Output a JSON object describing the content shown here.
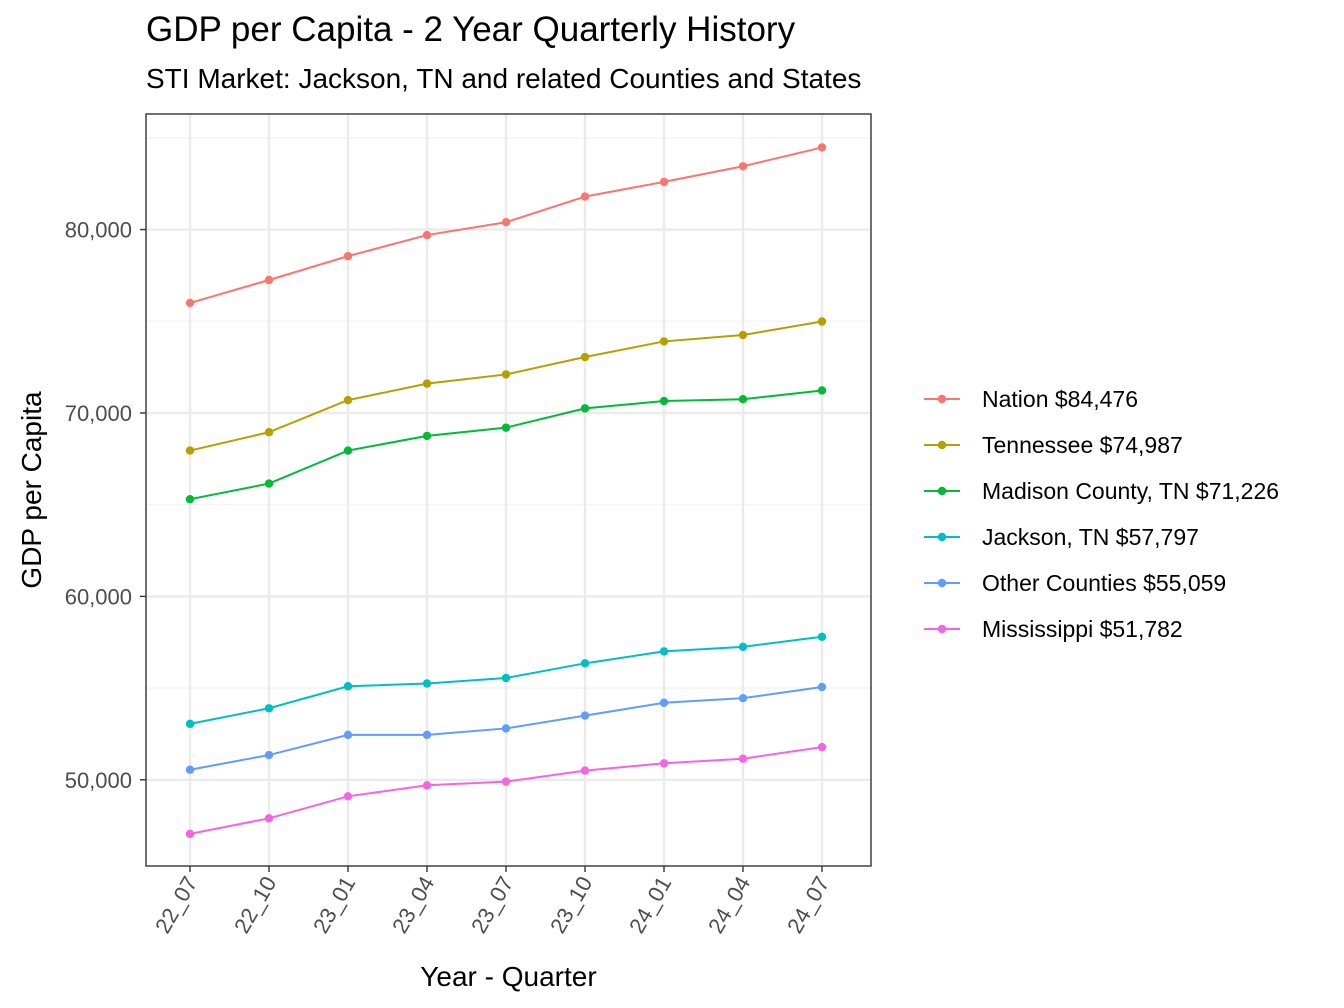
{
  "chart_data": {
    "type": "line",
    "title": "GDP per Capita - 2 Year Quarterly History",
    "subtitle": "STI Market: Jackson, TN and related Counties and States",
    "xlabel": "Year - Quarter",
    "ylabel": "GDP per Capita",
    "categories": [
      "22_07",
      "22_10",
      "23_01",
      "23_04",
      "23_07",
      "23_10",
      "24_01",
      "24_04",
      "24_07"
    ],
    "ylim": [
      45300,
      86300
    ],
    "yticks": [
      50000,
      60000,
      70000,
      80000
    ],
    "ytick_labels": [
      "50,000",
      "60,000",
      "70,000",
      "80,000"
    ],
    "grid": true,
    "legend_position": "right",
    "series": [
      {
        "name": "Nation $84,476",
        "color": "#F8766D",
        "values": [
          76000,
          77250,
          78550,
          79700,
          80400,
          81800,
          82600,
          83450,
          84476
        ]
      },
      {
        "name": "Tennessee $74,987",
        "color": "#B79F00",
        "values": [
          67950,
          68950,
          70700,
          71600,
          72100,
          73050,
          73900,
          74250,
          74987
        ]
      },
      {
        "name": "Madison County, TN $71,226",
        "color": "#00BA38",
        "values": [
          65300,
          66150,
          67950,
          68750,
          69200,
          70250,
          70650,
          70750,
          71226
        ]
      },
      {
        "name": "Jackson, TN $57,797",
        "color": "#00BFC4",
        "values": [
          53050,
          53900,
          55100,
          55250,
          55550,
          56350,
          57000,
          57250,
          57797
        ]
      },
      {
        "name": "Other Counties $55,059",
        "color": "#619CFF",
        "values": [
          50550,
          51350,
          52450,
          52450,
          52800,
          53500,
          54200,
          54450,
          55059
        ]
      },
      {
        "name": "Mississippi $51,782",
        "color": "#F564E3",
        "values": [
          47050,
          47900,
          49100,
          49700,
          49900,
          50500,
          50900,
          51150,
          51782
        ]
      }
    ]
  }
}
